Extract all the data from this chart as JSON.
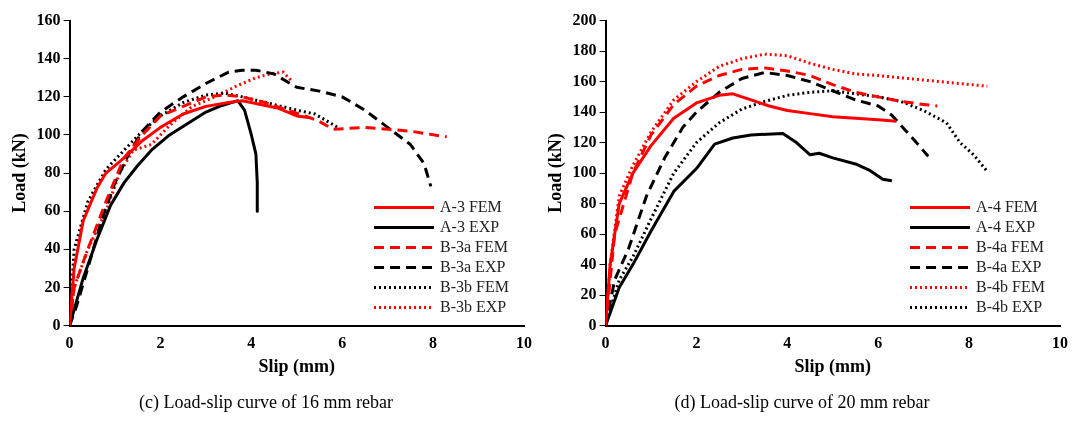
{
  "chart_data": [
    {
      "type": "line",
      "title": "(c) Load-slip curve of 16 mm rebar",
      "xlabel": "Slip (mm)",
      "ylabel": "Load (kN)",
      "xlim": [
        0,
        10
      ],
      "xticks": [
        0,
        2,
        4,
        6,
        8,
        10
      ],
      "ylim": [
        0,
        160
      ],
      "yticks": [
        0,
        20,
        40,
        60,
        80,
        100,
        120,
        140,
        160
      ],
      "grid": false,
      "legend": "bottom right",
      "series": [
        {
          "name": "A-3 FEM",
          "color": "#ff0000",
          "line_style": "solid",
          "x": [
            0,
            0.1,
            0.3,
            0.6,
            0.8,
            1.2,
            1.6,
            2,
            2.5,
            3,
            3.5,
            3.8,
            4.2,
            4.6,
            5,
            5.3
          ],
          "values": [
            0,
            30,
            55,
            72,
            80,
            88,
            97,
            104,
            111,
            115,
            117,
            118,
            116,
            114,
            110,
            109
          ]
        },
        {
          "name": "A-3 EXP",
          "color": "#000000",
          "line_style": "solid",
          "x": [
            0,
            0.3,
            0.6,
            0.9,
            1.2,
            1.5,
            1.8,
            2.2,
            2.6,
            3,
            3.3,
            3.7,
            3.85,
            4,
            4.1,
            4.13,
            4.13
          ],
          "values": [
            0,
            25,
            45,
            63,
            75,
            84,
            92,
            100,
            106,
            112,
            115,
            118,
            113,
            100,
            90,
            75,
            60
          ]
        },
        {
          "name": "B-3a FEM",
          "color": "#ff0000",
          "line_style": "dashed",
          "x": [
            0,
            0.1,
            0.4,
            0.8,
            1.2,
            1.6,
            2,
            2.5,
            3,
            3.4,
            3.8,
            4.3,
            4.8,
            5.3,
            5.5,
            5.8,
            6.5,
            7.5,
            8.3
          ],
          "values": [
            0,
            20,
            40,
            65,
            88,
            100,
            110,
            115,
            120,
            121,
            120,
            117,
            113,
            109,
            107,
            103,
            104,
            102,
            99
          ]
        },
        {
          "name": "B-3a EXP",
          "color": "#000000",
          "line_style": "dashed",
          "x": [
            0,
            0.15,
            0.4,
            0.7,
            1,
            1.3,
            1.6,
            2,
            2.5,
            3,
            3.5,
            3.8,
            4.1,
            4.5,
            5,
            5.5,
            6,
            6.5,
            7,
            7.5,
            7.8,
            7.95
          ],
          "values": [
            0,
            10,
            30,
            55,
            75,
            90,
            102,
            112,
            120,
            127,
            133,
            134,
            134,
            132,
            125,
            123,
            120,
            113,
            104,
            95,
            85,
            73
          ]
        },
        {
          "name": "B-3b FEM",
          "color": "#000000",
          "line_style": "dotted",
          "x": [
            0,
            0.1,
            0.4,
            0.8,
            1.2,
            1.6,
            2,
            2.5,
            3,
            3.4,
            3.8,
            4.5,
            5,
            5.4,
            5.9
          ],
          "values": [
            0,
            40,
            65,
            82,
            92,
            102,
            110,
            117,
            121,
            122,
            120,
            116,
            113,
            111,
            104
          ]
        },
        {
          "name": "B-3b EXP",
          "color": "#ff0000",
          "line_style": "dotted",
          "x": [
            0,
            0.1,
            0.4,
            0.8,
            1.1,
            1.4,
            1.8,
            2.2,
            2.7,
            3.2,
            3.7,
            4.1,
            4.4,
            4.7,
            4.9
          ],
          "values": [
            0,
            20,
            40,
            60,
            80,
            92,
            95,
            105,
            115,
            120,
            126,
            130,
            132,
            133,
            128
          ]
        }
      ]
    },
    {
      "type": "line",
      "title": "(d) Load-slip curve of 20 mm rebar",
      "xlabel": "Slip (mm)",
      "ylabel": "Load (kN)",
      "xlim": [
        0,
        10
      ],
      "xticks": [
        0,
        2,
        4,
        6,
        8,
        10
      ],
      "ylim": [
        0,
        200
      ],
      "yticks": [
        0,
        20,
        40,
        60,
        80,
        100,
        120,
        140,
        160,
        180,
        200
      ],
      "grid": false,
      "legend": "bottom right",
      "series": [
        {
          "name": "A-4 FEM",
          "color": "#ff0000",
          "line_style": "solid",
          "x": [
            0,
            0.1,
            0.3,
            0.6,
            1,
            1.5,
            2,
            2.5,
            2.8,
            3.2,
            3.6,
            4,
            4.5,
            5,
            5.5,
            6,
            6.4
          ],
          "values": [
            0,
            40,
            80,
            100,
            118,
            136,
            146,
            151,
            152,
            148,
            144,
            141,
            139,
            137,
            136,
            135,
            134
          ]
        },
        {
          "name": "A-4 EXP",
          "color": "#000000",
          "line_style": "solid",
          "x": [
            0,
            0.3,
            0.6,
            1,
            1.5,
            2,
            2.4,
            2.8,
            3.2,
            3.9,
            4.2,
            4.5,
            4.7,
            5,
            5.5,
            5.8,
            6.1,
            6.3
          ],
          "values": [
            0,
            25,
            40,
            62,
            88,
            103,
            119,
            123,
            125,
            126,
            120,
            112,
            113,
            110,
            106,
            102,
            96,
            95
          ]
        },
        {
          "name": "B-4a FEM",
          "color": "#ff0000",
          "line_style": "dashed",
          "x": [
            0,
            0.2,
            0.6,
            1,
            1.5,
            2,
            2.5,
            3,
            3.5,
            4,
            4.5,
            5,
            5.5,
            6,
            6.5,
            7,
            7.3
          ],
          "values": [
            0,
            60,
            100,
            125,
            145,
            157,
            164,
            168,
            169,
            167,
            164,
            158,
            153,
            150,
            147,
            145,
            144
          ]
        },
        {
          "name": "B-4a EXP",
          "color": "#000000",
          "line_style": "dashed",
          "x": [
            0,
            0.2,
            0.5,
            0.9,
            1.3,
            1.7,
            2,
            2.5,
            3,
            3.5,
            4,
            4.5,
            5,
            5.5,
            6,
            6.3,
            6.6,
            6.9,
            7.1
          ],
          "values": [
            0,
            30,
            50,
            85,
            110,
            130,
            140,
            153,
            162,
            166,
            164,
            160,
            154,
            148,
            144,
            138,
            128,
            118,
            111
          ]
        },
        {
          "name": "B-4b FEM",
          "color": "#ff0000",
          "line_style": "dotted",
          "x": [
            0,
            0.1,
            0.3,
            0.6,
            1,
            1.5,
            2,
            2.5,
            3,
            3.5,
            4,
            4.5,
            5,
            5.5,
            6,
            7,
            8.4
          ],
          "values": [
            0,
            40,
            85,
            105,
            127,
            148,
            160,
            170,
            175,
            178,
            177,
            172,
            168,
            165,
            164,
            161,
            157
          ]
        },
        {
          "name": "B-4b EXP",
          "color": "#000000",
          "line_style": "dotted",
          "x": [
            0,
            0.3,
            0.6,
            1,
            1.5,
            2,
            2.5,
            3,
            3.5,
            4,
            4.5,
            5,
            5.5,
            6,
            6.5,
            7,
            7.5,
            7.8,
            8.1,
            8.4
          ],
          "values": [
            0,
            30,
            45,
            70,
            100,
            120,
            133,
            142,
            147,
            151,
            153,
            154,
            152,
            150,
            147,
            141,
            133,
            120,
            112,
            101
          ]
        }
      ]
    }
  ]
}
